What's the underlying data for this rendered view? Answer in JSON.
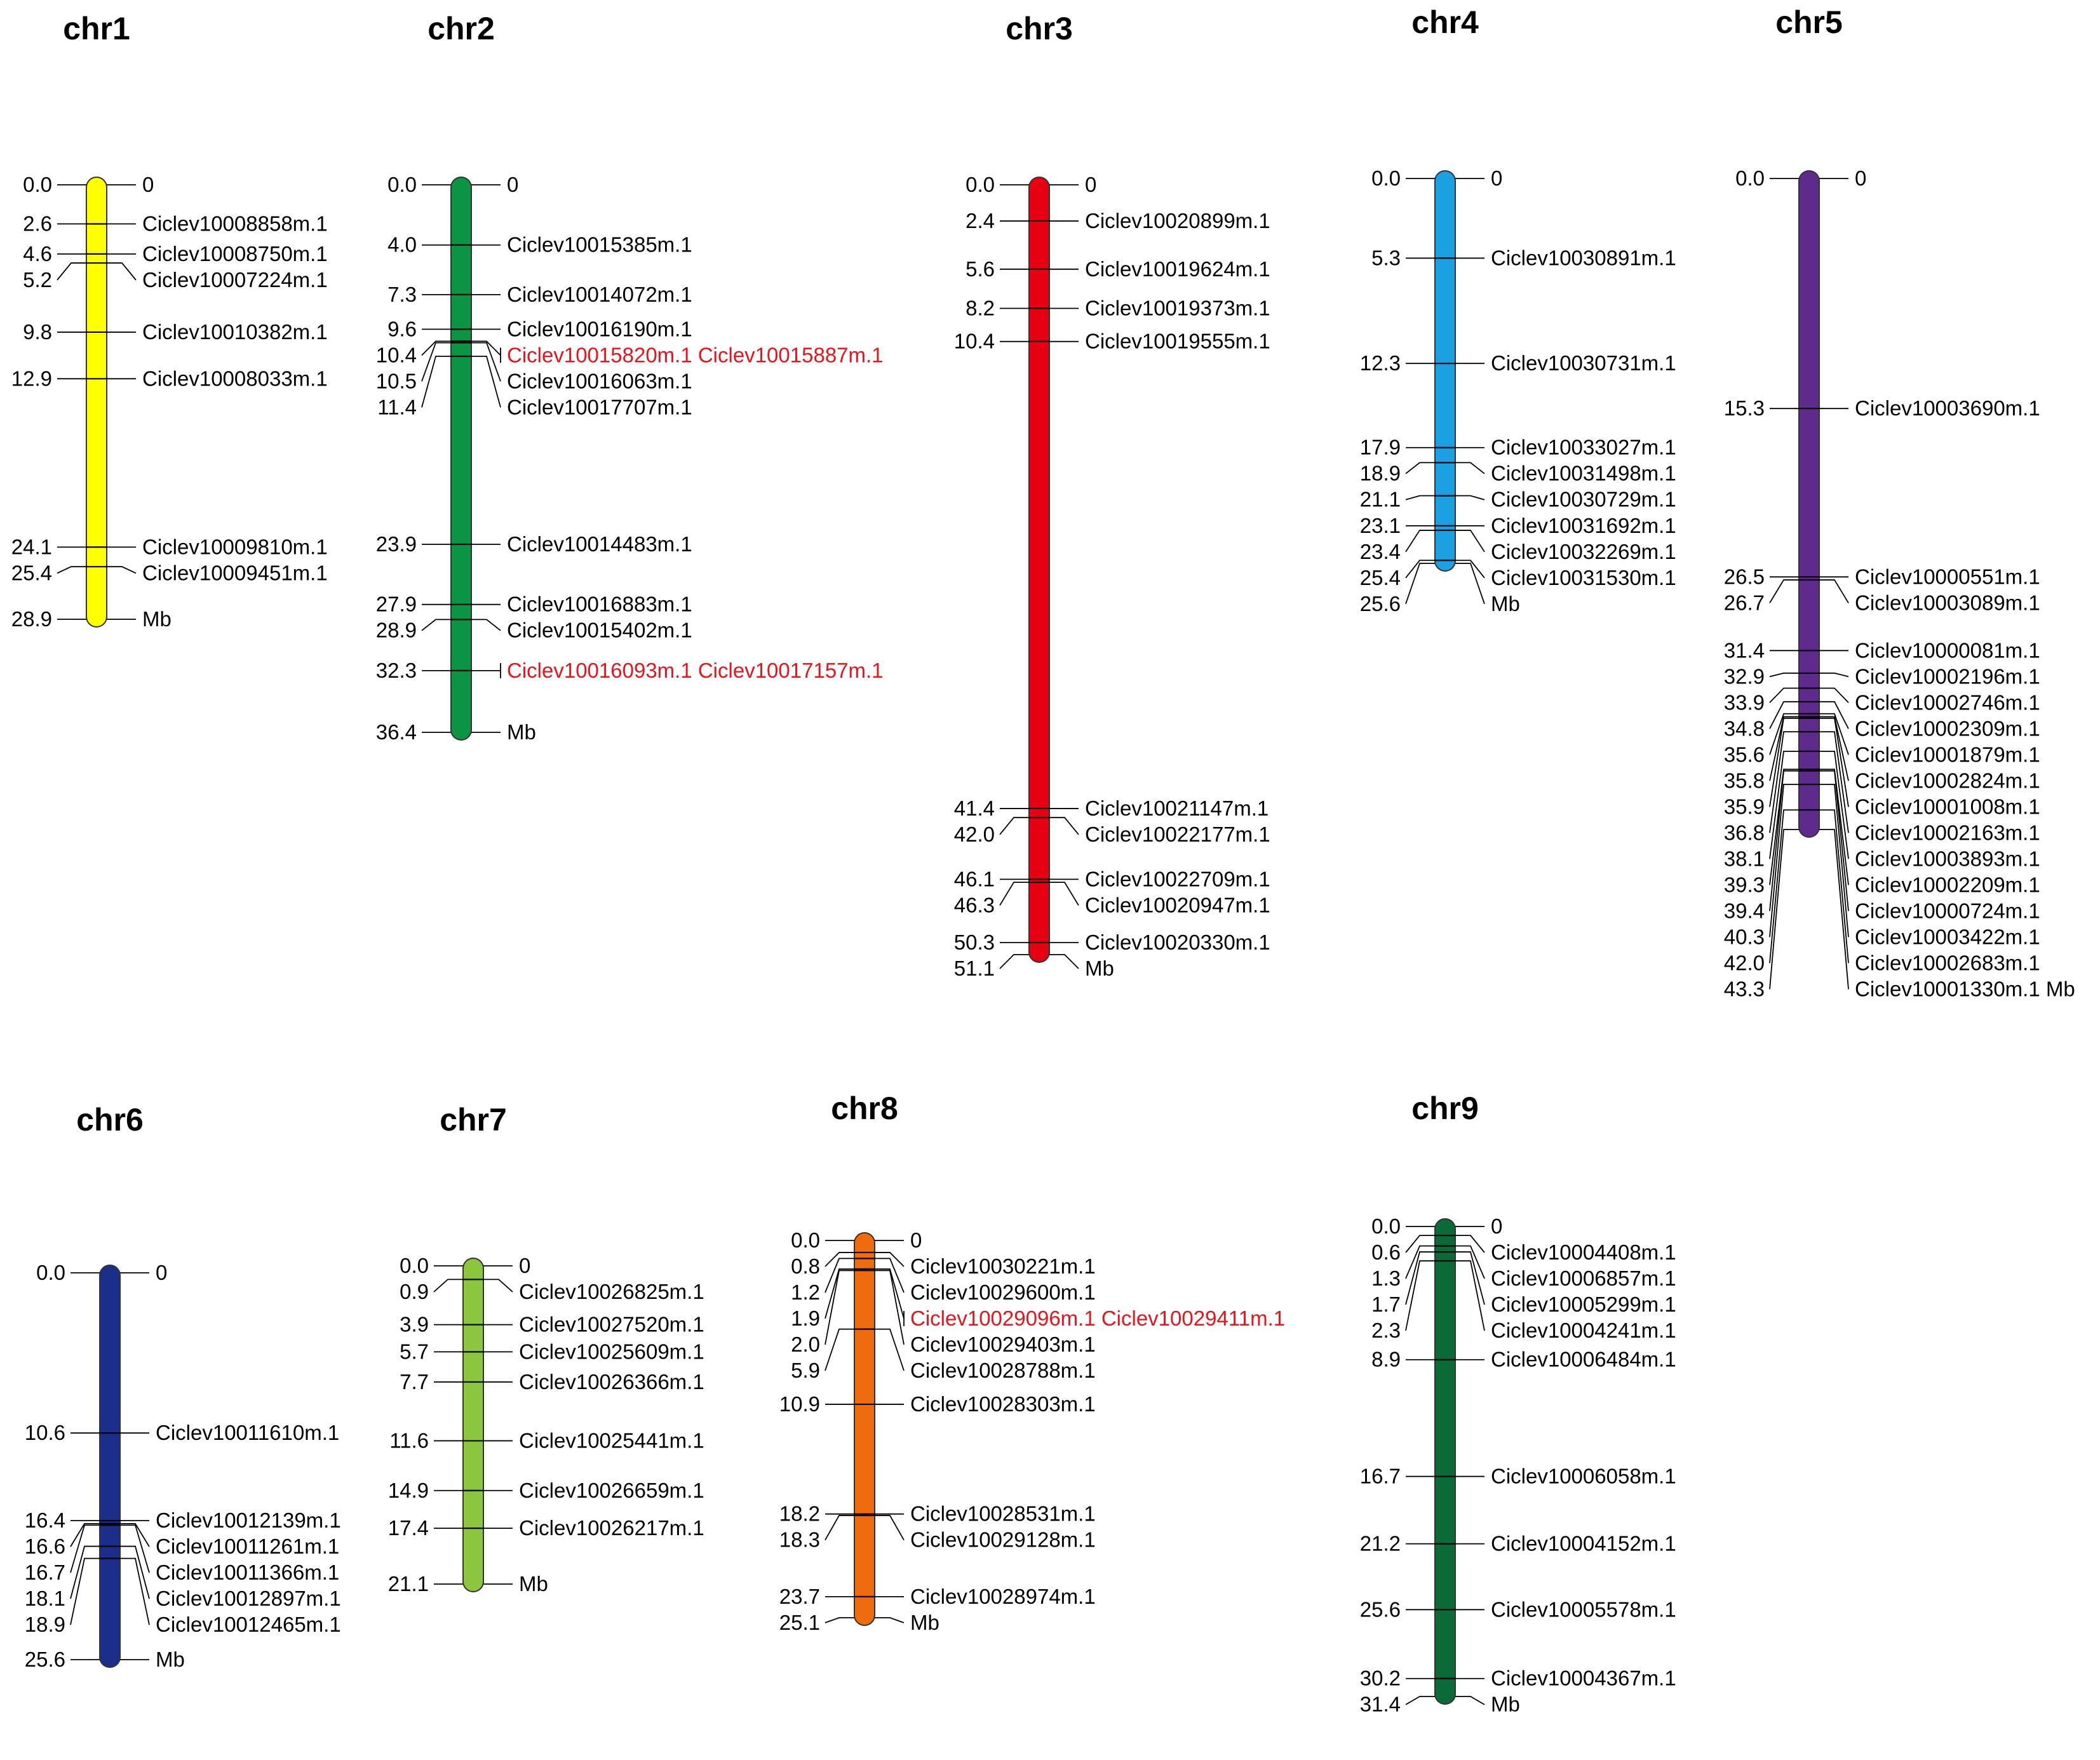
{
  "unit": "Mb",
  "chromosomes": [
    {
      "name": "chr1",
      "color": "#ffff00",
      "length": 28.9,
      "markers": [
        {
          "pos": "0.0",
          "label": "0"
        },
        {
          "pos": "2.6",
          "label": "Ciclev10008858m.1"
        },
        {
          "pos": "4.6",
          "label": "Ciclev10008750m.1"
        },
        {
          "pos": "5.2",
          "label": "Ciclev10007224m.1"
        },
        {
          "pos": "9.8",
          "label": "Ciclev10010382m.1"
        },
        {
          "pos": "12.9",
          "label": "Ciclev10008033m.1"
        },
        {
          "pos": "24.1",
          "label": "Ciclev10009810m.1"
        },
        {
          "pos": "25.4",
          "label": "Ciclev10009451m.1"
        },
        {
          "pos": "28.9",
          "label": "Mb"
        }
      ]
    },
    {
      "name": "chr2",
      "color": "#0b9444",
      "length": 36.4,
      "markers": [
        {
          "pos": "0.0",
          "label": "0"
        },
        {
          "pos": "4.0",
          "label": "Ciclev10015385m.1"
        },
        {
          "pos": "7.3",
          "label": "Ciclev10014072m.1"
        },
        {
          "pos": "9.6",
          "label": "Ciclev10016190m.1"
        },
        {
          "pos": "10.4",
          "label": "Ciclev10015820m.1 Ciclev10015887m.1",
          "highlight": true
        },
        {
          "pos": "10.5",
          "label": "Ciclev10016063m.1"
        },
        {
          "pos": "11.4",
          "label": "Ciclev10017707m.1"
        },
        {
          "pos": "23.9",
          "label": "Ciclev10014483m.1"
        },
        {
          "pos": "27.9",
          "label": "Ciclev10016883m.1"
        },
        {
          "pos": "28.9",
          "label": "Ciclev10015402m.1"
        },
        {
          "pos": "32.3",
          "label": "Ciclev10016093m.1 Ciclev10017157m.1",
          "highlight": true
        },
        {
          "pos": "36.4",
          "label": "Mb"
        }
      ]
    },
    {
      "name": "chr3",
      "color": "#e60012",
      "length": 51.1,
      "markers": [
        {
          "pos": "0.0",
          "label": "0"
        },
        {
          "pos": "2.4",
          "label": "Ciclev10020899m.1"
        },
        {
          "pos": "5.6",
          "label": "Ciclev10019624m.1"
        },
        {
          "pos": "8.2",
          "label": "Ciclev10019373m.1"
        },
        {
          "pos": "10.4",
          "label": "Ciclev10019555m.1"
        },
        {
          "pos": "41.4",
          "label": "Ciclev10021147m.1"
        },
        {
          "pos": "42.0",
          "label": "Ciclev10022177m.1"
        },
        {
          "pos": "46.1",
          "label": "Ciclev10022709m.1"
        },
        {
          "pos": "46.3",
          "label": "Ciclev10020947m.1"
        },
        {
          "pos": "50.3",
          "label": "Ciclev10020330m.1"
        },
        {
          "pos": "51.1",
          "label": "Mb"
        }
      ]
    },
    {
      "name": "chr4",
      "color": "#1ba1e2",
      "length": 25.6,
      "markers": [
        {
          "pos": "0.0",
          "label": "0"
        },
        {
          "pos": "5.3",
          "label": "Ciclev10030891m.1"
        },
        {
          "pos": "12.3",
          "label": "Ciclev10030731m.1"
        },
        {
          "pos": "17.9",
          "label": "Ciclev10033027m.1"
        },
        {
          "pos": "18.9",
          "label": "Ciclev10031498m.1"
        },
        {
          "pos": "21.1",
          "label": "Ciclev10030729m.1"
        },
        {
          "pos": "23.1",
          "label": "Ciclev10031692m.1"
        },
        {
          "pos": "23.4",
          "label": "Ciclev10032269m.1"
        },
        {
          "pos": "25.4",
          "label": "Ciclev10031530m.1"
        },
        {
          "pos": "25.6",
          "label": "Mb"
        }
      ]
    },
    {
      "name": "chr5",
      "color": "#5e2a8c",
      "length": 43.3,
      "markers": [
        {
          "pos": "0.0",
          "label": "0"
        },
        {
          "pos": "15.3",
          "label": "Ciclev10003690m.1"
        },
        {
          "pos": "26.5",
          "label": "Ciclev10000551m.1"
        },
        {
          "pos": "26.7",
          "label": "Ciclev10003089m.1"
        },
        {
          "pos": "31.4",
          "label": "Ciclev10000081m.1"
        },
        {
          "pos": "32.9",
          "label": "Ciclev10002196m.1"
        },
        {
          "pos": "33.9",
          "label": "Ciclev10002746m.1"
        },
        {
          "pos": "34.8",
          "label": "Ciclev10002309m.1"
        },
        {
          "pos": "35.6",
          "label": "Ciclev10001879m.1"
        },
        {
          "pos": "35.8",
          "label": "Ciclev10002824m.1"
        },
        {
          "pos": "35.9",
          "label": "Ciclev10001008m.1"
        },
        {
          "pos": "36.8",
          "label": "Ciclev10002163m.1"
        },
        {
          "pos": "38.1",
          "label": "Ciclev10003893m.1"
        },
        {
          "pos": "39.3",
          "label": "Ciclev10002209m.1"
        },
        {
          "pos": "39.4",
          "label": "Ciclev10000724m.1"
        },
        {
          "pos": "40.3",
          "label": "Ciclev10003422m.1"
        },
        {
          "pos": "42.0",
          "label": "Ciclev10002683m.1"
        },
        {
          "pos": "43.3",
          "label": "Ciclev10001330m.1 Mb"
        }
      ]
    },
    {
      "name": "chr6",
      "color": "#1b2f8a",
      "length": 25.6,
      "markers": [
        {
          "pos": "0.0",
          "label": "0"
        },
        {
          "pos": "10.6",
          "label": "Ciclev10011610m.1"
        },
        {
          "pos": "16.4",
          "label": "Ciclev10012139m.1"
        },
        {
          "pos": "16.6",
          "label": "Ciclev10011261m.1"
        },
        {
          "pos": "16.7",
          "label": "Ciclev10011366m.1"
        },
        {
          "pos": "18.1",
          "label": "Ciclev10012897m.1"
        },
        {
          "pos": "18.9",
          "label": "Ciclev10012465m.1"
        },
        {
          "pos": "25.6",
          "label": "Mb"
        }
      ]
    },
    {
      "name": "chr7",
      "color": "#8cc63f",
      "length": 21.1,
      "markers": [
        {
          "pos": "0.0",
          "label": "0"
        },
        {
          "pos": "0.9",
          "label": "Ciclev10026825m.1"
        },
        {
          "pos": "3.9",
          "label": "Ciclev10027520m.1"
        },
        {
          "pos": "5.7",
          "label": "Ciclev10025609m.1"
        },
        {
          "pos": "7.7",
          "label": "Ciclev10026366m.1"
        },
        {
          "pos": "11.6",
          "label": "Ciclev10025441m.1"
        },
        {
          "pos": "14.9",
          "label": "Ciclev10026659m.1"
        },
        {
          "pos": "17.4",
          "label": "Ciclev10026217m.1"
        },
        {
          "pos": "21.1",
          "label": "Mb"
        }
      ]
    },
    {
      "name": "chr8",
      "color": "#ef6c0e",
      "length": 25.1,
      "markers": [
        {
          "pos": "0.0",
          "label": "0"
        },
        {
          "pos": "0.8",
          "label": "Ciclev10030221m.1"
        },
        {
          "pos": "1.2",
          "label": "Ciclev10029600m.1"
        },
        {
          "pos": "1.9",
          "label": "Ciclev10029096m.1 Ciclev10029411m.1",
          "highlight": true
        },
        {
          "pos": "2.0",
          "label": "Ciclev10029403m.1"
        },
        {
          "pos": "5.9",
          "label": "Ciclev10028788m.1"
        },
        {
          "pos": "10.9",
          "label": "Ciclev10028303m.1"
        },
        {
          "pos": "18.2",
          "label": "Ciclev10028531m.1"
        },
        {
          "pos": "18.3",
          "label": "Ciclev10029128m.1"
        },
        {
          "pos": "23.7",
          "label": "Ciclev10028974m.1"
        },
        {
          "pos": "25.1",
          "label": "Mb"
        }
      ]
    },
    {
      "name": "chr9",
      "color": "#0a6b38",
      "length": 31.4,
      "markers": [
        {
          "pos": "0.0",
          "label": "0"
        },
        {
          "pos": "0.6",
          "label": "Ciclev10004408m.1"
        },
        {
          "pos": "1.3",
          "label": "Ciclev10006857m.1"
        },
        {
          "pos": "1.7",
          "label": "Ciclev10005299m.1"
        },
        {
          "pos": "2.3",
          "label": "Ciclev10004241m.1"
        },
        {
          "pos": "8.9",
          "label": "Ciclev10006484m.1"
        },
        {
          "pos": "16.7",
          "label": "Ciclev10006058m.1"
        },
        {
          "pos": "21.2",
          "label": "Ciclev10004152m.1"
        },
        {
          "pos": "25.6",
          "label": "Ciclev10005578m.1"
        },
        {
          "pos": "30.2",
          "label": "Ciclev10004367m.1"
        },
        {
          "pos": "31.4",
          "label": "Mb"
        }
      ]
    }
  ]
}
